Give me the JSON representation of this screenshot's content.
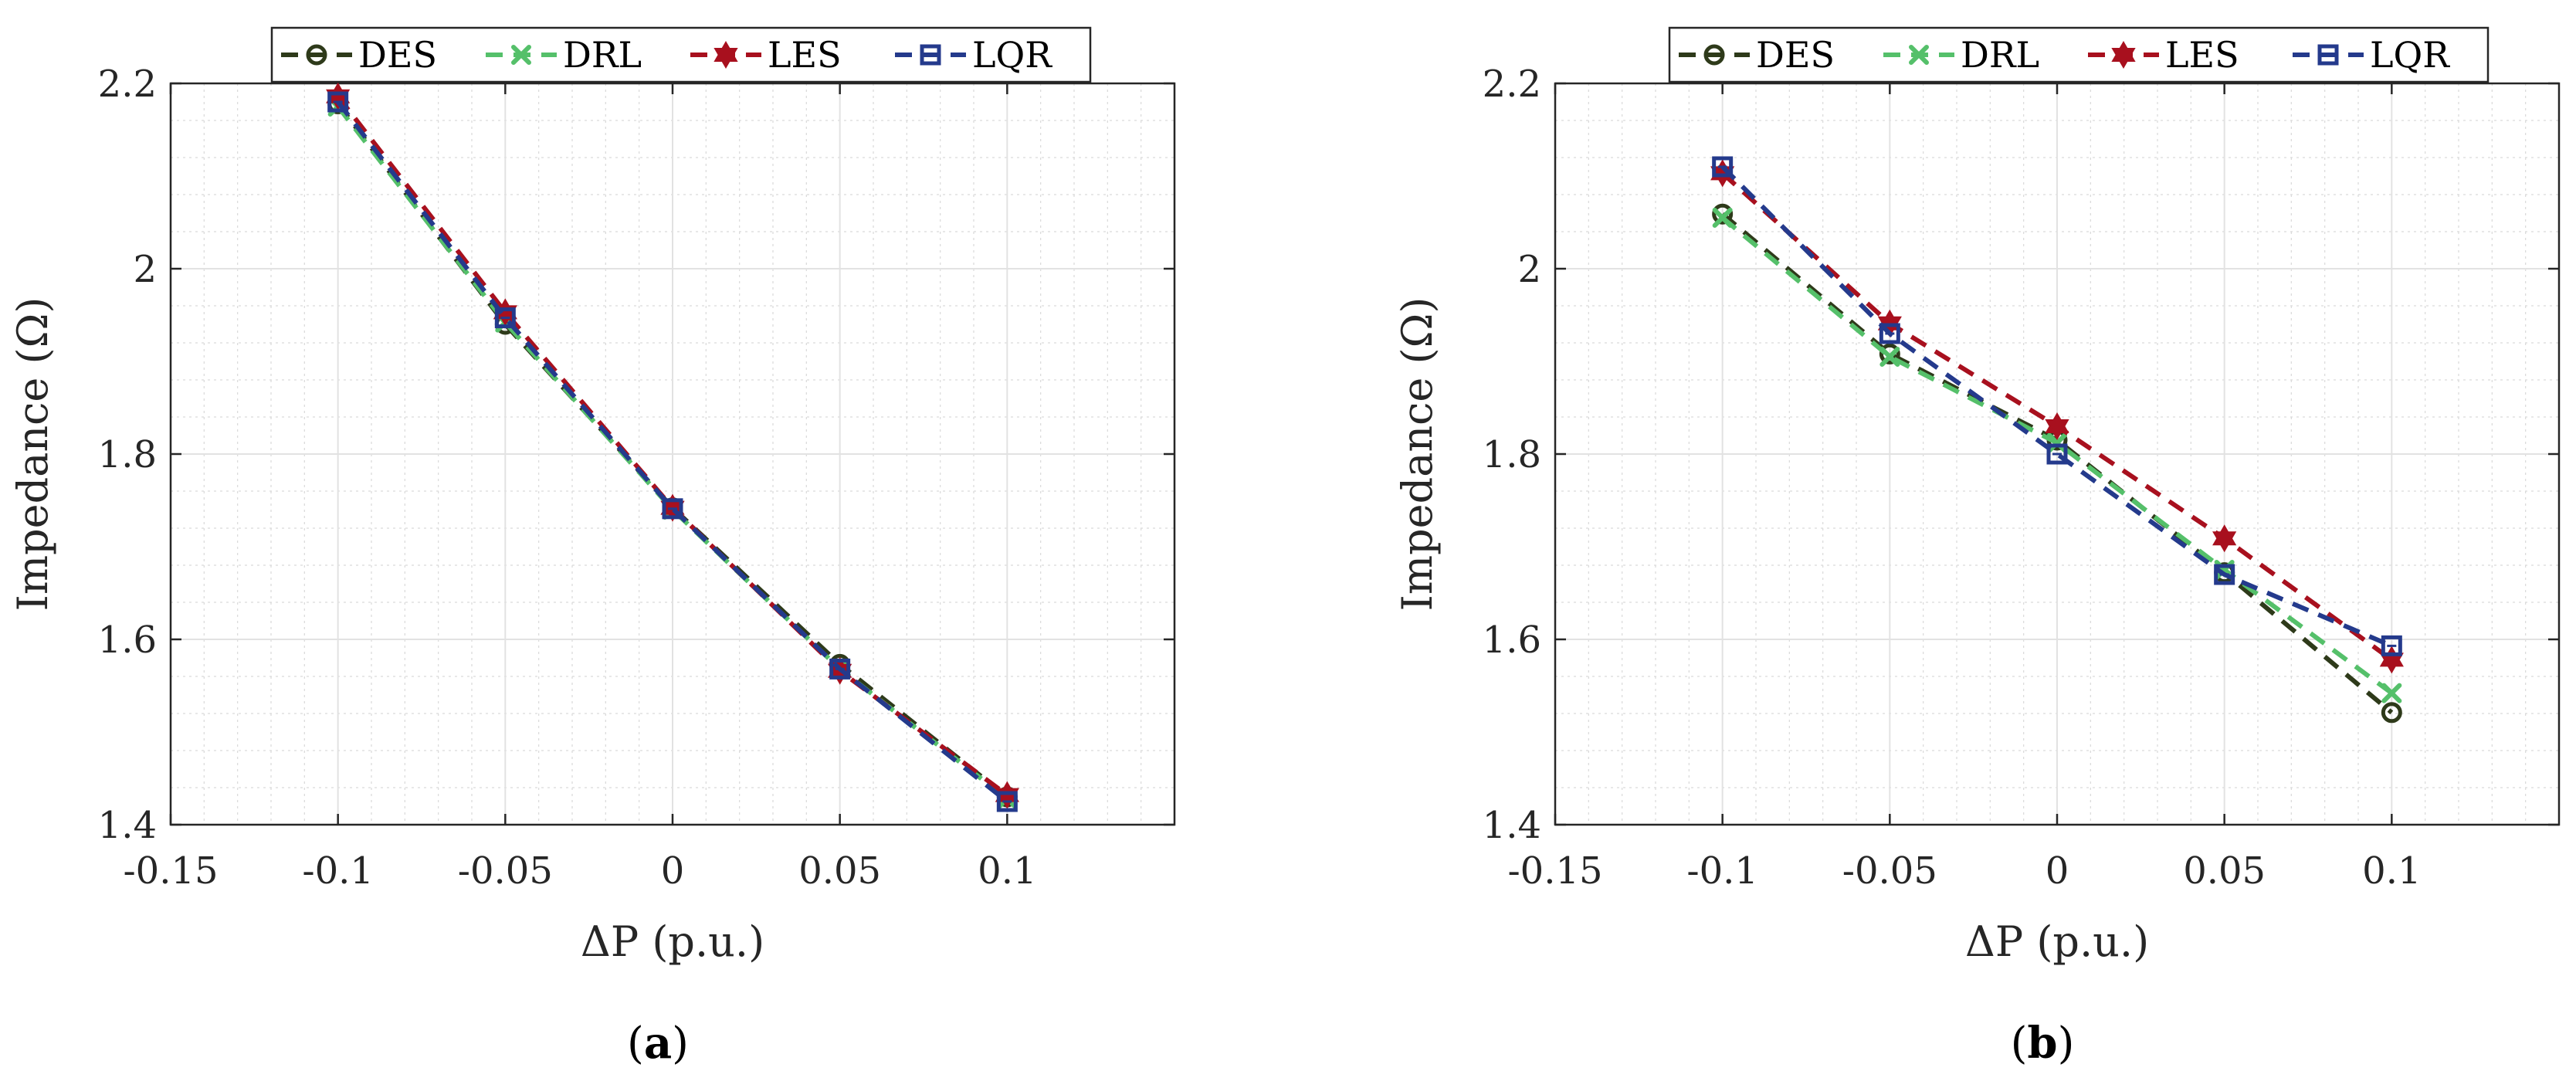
{
  "chart_data": [
    {
      "type": "line",
      "panel": "a",
      "caption": "a",
      "xlabel": "ΔP (p.u.)",
      "ylabel": "Impedance (Ω)",
      "xlim": [
        -0.15,
        0.15
      ],
      "ylim": [
        1.4,
        2.2
      ],
      "xticks": [
        -0.15,
        -0.1,
        -0.05,
        0,
        0.05,
        0.1
      ],
      "xtick_labels": [
        "-0.15",
        "-0.1",
        "-0.05",
        "0",
        "0.05",
        "0.1"
      ],
      "yticks": [
        1.4,
        1.6,
        1.8,
        2.0,
        2.2
      ],
      "ytick_labels": [
        "1.4",
        "1.6",
        "1.8",
        "2",
        "2.2"
      ],
      "grid": true,
      "legend_position": "top",
      "x": [
        -0.1,
        -0.05,
        0,
        0.05,
        0.1
      ],
      "series": [
        {
          "name": "DES",
          "color": "#2e3a1a",
          "marker": "circle",
          "values": [
            2.178,
            1.94,
            1.742,
            1.573,
            1.43
          ]
        },
        {
          "name": "DRL",
          "color": "#55c06a",
          "marker": "x",
          "values": [
            2.175,
            1.942,
            1.74,
            1.568,
            1.428
          ]
        },
        {
          "name": "LES",
          "color": "#a8101e",
          "marker": "hexagram",
          "values": [
            2.186,
            1.953,
            1.742,
            1.566,
            1.432
          ]
        },
        {
          "name": "LQR",
          "color": "#243a8c",
          "marker": "square",
          "values": [
            2.18,
            1.947,
            1.741,
            1.568,
            1.425
          ]
        }
      ]
    },
    {
      "type": "line",
      "panel": "b",
      "caption": "b",
      "xlabel": "ΔP (p.u.)",
      "ylabel": "Impedance (Ω)",
      "xlim": [
        -0.15,
        0.15
      ],
      "ylim": [
        1.4,
        2.2
      ],
      "xticks": [
        -0.15,
        -0.1,
        -0.05,
        0,
        0.05,
        0.1
      ],
      "xtick_labels": [
        "-0.15",
        "-0.1",
        "-0.05",
        "0",
        "0.05",
        "0.1"
      ],
      "yticks": [
        1.4,
        1.6,
        1.8,
        2.0,
        2.2
      ],
      "ytick_labels": [
        "1.4",
        "1.6",
        "1.8",
        "2",
        "2.2"
      ],
      "grid": true,
      "legend_position": "top",
      "x": [
        -0.1,
        -0.05,
        0,
        0.05,
        0.1
      ],
      "series": [
        {
          "name": "DES",
          "color": "#2e3a1a",
          "marker": "circle",
          "values": [
            2.059,
            1.908,
            1.815,
            1.672,
            1.521
          ]
        },
        {
          "name": "DRL",
          "color": "#55c06a",
          "marker": "x",
          "values": [
            2.055,
            1.905,
            1.812,
            1.675,
            1.542
          ]
        },
        {
          "name": "LES",
          "color": "#a8101e",
          "marker": "hexagram",
          "values": [
            2.103,
            1.941,
            1.83,
            1.709,
            1.578
          ]
        },
        {
          "name": "LQR",
          "color": "#243a8c",
          "marker": "square",
          "values": [
            2.11,
            1.93,
            1.8,
            1.67,
            1.593
          ]
        }
      ]
    }
  ]
}
